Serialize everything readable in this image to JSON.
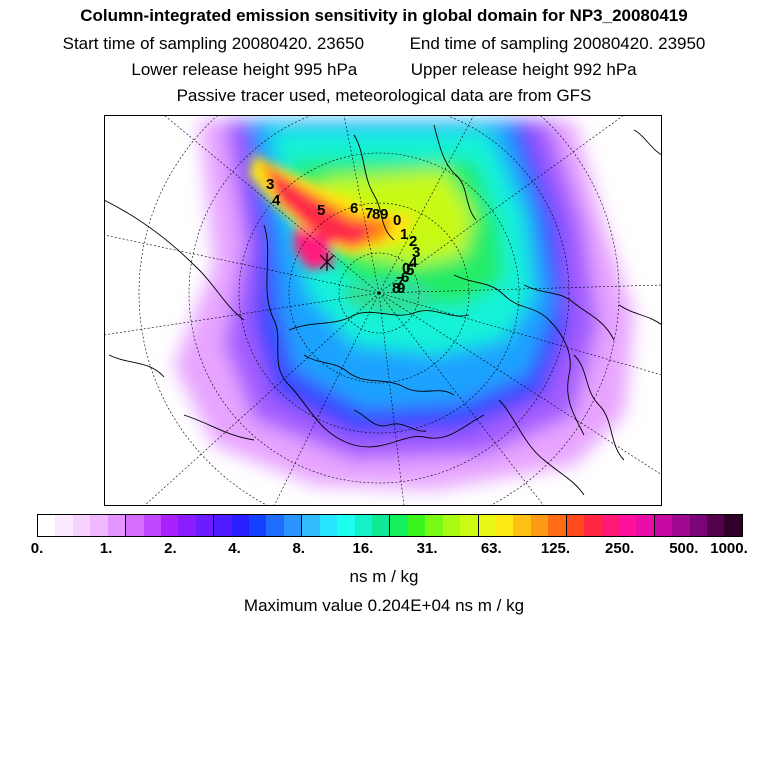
{
  "header": {
    "title": "Column-integrated emission sensitivity in global domain for NP3_20080419",
    "start_time": "Start time of sampling 20080420. 23650",
    "end_time": "End time of sampling 20080420. 23950",
    "lower_release": "Lower release height  995 hPa",
    "upper_release": "Upper release height  992 hPa",
    "tracer_note": "Passive tracer used, meteorological data are from GFS"
  },
  "map": {
    "labels": [
      "3",
      "4",
      "5",
      "6",
      "7",
      "8",
      "9",
      "0",
      "1",
      "2",
      "3",
      "4",
      "5",
      "6",
      "7",
      "8",
      "9",
      "0"
    ]
  },
  "colorbar": {
    "colors": [
      "#ffffff",
      "#fbe9ff",
      "#f6d2ff",
      "#f0b8ff",
      "#e495ff",
      "#d56dff",
      "#c148ff",
      "#aa20ff",
      "#8a1cff",
      "#6c1cff",
      "#4e1cff",
      "#2a20ff",
      "#1440ff",
      "#1f6dff",
      "#2a95ff",
      "#32bbff",
      "#28e4ff",
      "#1cffee",
      "#14f0c8",
      "#10e896",
      "#14f05c",
      "#3cf51c",
      "#78fa14",
      "#a8fc14",
      "#ccfc14",
      "#eaf714",
      "#ffe914",
      "#ffc214",
      "#ff9a14",
      "#ff6c14",
      "#ff4a1e",
      "#ff2840",
      "#ff1874",
      "#ff109c",
      "#ea0ca6",
      "#c808a0",
      "#a00890",
      "#7a0478",
      "#54024c",
      "#300028"
    ],
    "tick_labels": [
      "0.",
      "1.",
      "2.",
      "4.",
      "8.",
      "16.",
      "31.",
      "63.",
      "125.",
      "250.",
      "500.",
      "1000."
    ],
    "unit": "ns m / kg"
  },
  "max_value": "Maximum value  0.204E+04 ns m / kg"
}
